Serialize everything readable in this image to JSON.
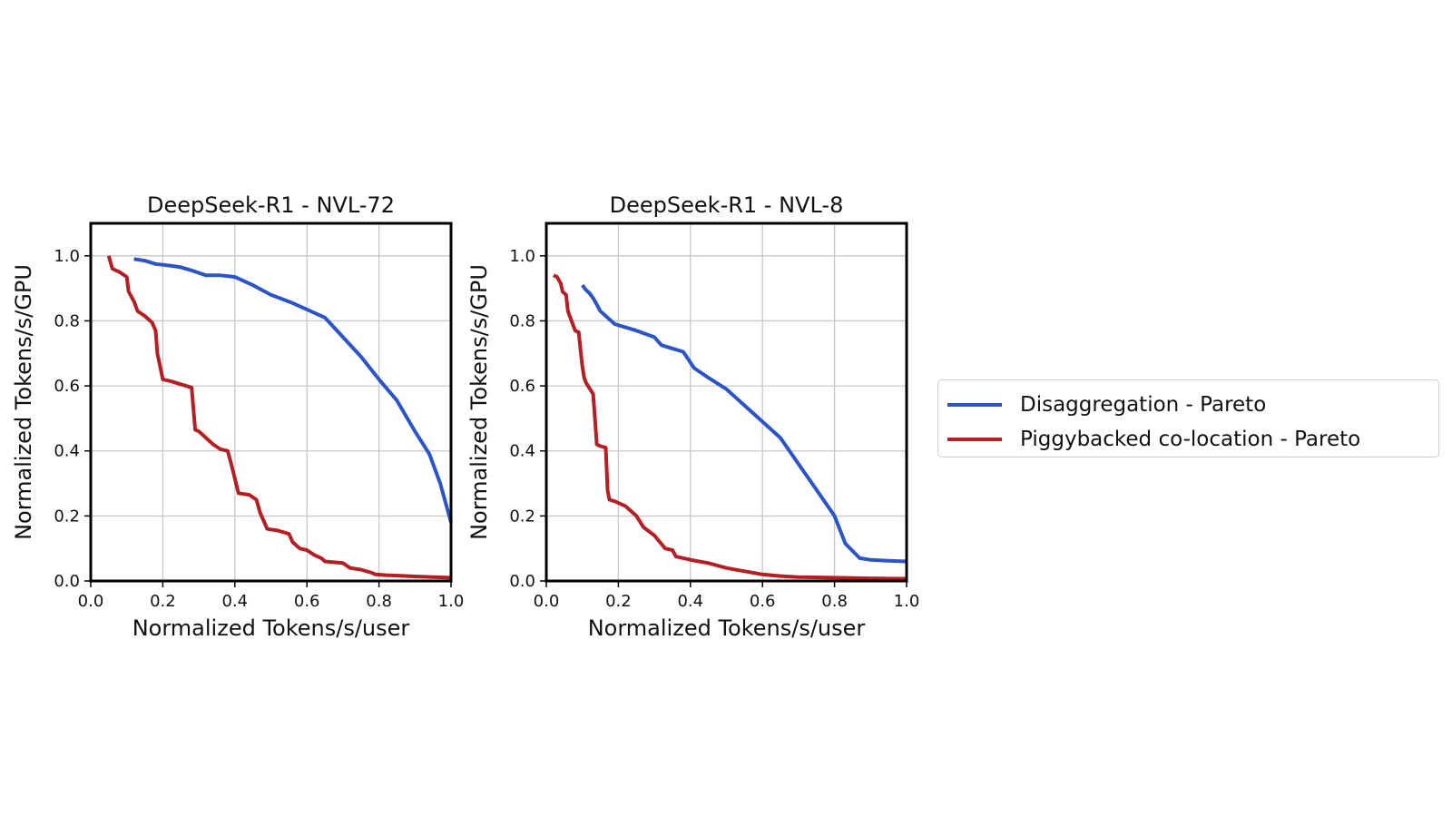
{
  "legend": {
    "items": [
      {
        "label": "Disaggregation - Pareto",
        "color": "#2b55c6"
      },
      {
        "label": "Piggybacked co-location - Pareto",
        "color": "#b51f24"
      }
    ]
  },
  "chart_data": [
    {
      "type": "line",
      "title": "DeepSeek-R1 - NVL-72",
      "xlabel": "Normalized Tokens/s/user",
      "ylabel": "Normalized Tokens/s/GPU",
      "xlim": [
        0.0,
        1.0
      ],
      "ylim": [
        0.0,
        1.1
      ],
      "xticks": [
        "0.0",
        "0.2",
        "0.4",
        "0.6",
        "0.8",
        "1.0"
      ],
      "yticks": [
        "0.0",
        "0.2",
        "0.4",
        "0.6",
        "0.8",
        "1.0"
      ],
      "grid": true,
      "series": [
        {
          "name": "Disaggregation - Pareto",
          "color": "#2b55c6",
          "x": [
            0.12,
            0.15,
            0.18,
            0.22,
            0.25,
            0.28,
            0.32,
            0.36,
            0.4,
            0.45,
            0.5,
            0.56,
            0.6,
            0.65,
            0.7,
            0.75,
            0.8,
            0.85,
            0.9,
            0.94,
            0.97,
            1.0
          ],
          "y": [
            0.99,
            0.985,
            0.975,
            0.97,
            0.965,
            0.955,
            0.94,
            0.94,
            0.935,
            0.91,
            0.88,
            0.855,
            0.835,
            0.81,
            0.75,
            0.69,
            0.62,
            0.555,
            0.46,
            0.39,
            0.3,
            0.18
          ]
        },
        {
          "name": "Piggybacked co-location - Pareto",
          "color": "#b51f24",
          "x": [
            0.05,
            0.06,
            0.08,
            0.1,
            0.105,
            0.12,
            0.13,
            0.15,
            0.17,
            0.18,
            0.185,
            0.2,
            0.22,
            0.28,
            0.285,
            0.29,
            0.3,
            0.32,
            0.34,
            0.36,
            0.38,
            0.39,
            0.41,
            0.44,
            0.46,
            0.47,
            0.49,
            0.52,
            0.55,
            0.56,
            0.58,
            0.6,
            0.62,
            0.64,
            0.65,
            0.7,
            0.72,
            0.75,
            0.78,
            0.79,
            0.82,
            0.86,
            0.9,
            0.95,
            1.0
          ],
          "y": [
            1.0,
            0.96,
            0.95,
            0.935,
            0.89,
            0.86,
            0.83,
            0.815,
            0.795,
            0.77,
            0.7,
            0.62,
            0.615,
            0.595,
            0.53,
            0.465,
            0.46,
            0.44,
            0.42,
            0.405,
            0.4,
            0.36,
            0.27,
            0.265,
            0.25,
            0.21,
            0.16,
            0.155,
            0.145,
            0.12,
            0.1,
            0.095,
            0.08,
            0.07,
            0.06,
            0.055,
            0.04,
            0.035,
            0.025,
            0.02,
            0.018,
            0.016,
            0.014,
            0.012,
            0.01
          ]
        }
      ]
    },
    {
      "type": "line",
      "title": "DeepSeek-R1 - NVL-8",
      "xlabel": "Normalized Tokens/s/user",
      "ylabel": "Normalized Tokens/s/GPU",
      "xlim": [
        0.0,
        1.0
      ],
      "ylim": [
        0.0,
        1.1
      ],
      "xticks": [
        "0.0",
        "0.2",
        "0.4",
        "0.6",
        "0.8",
        "1.0"
      ],
      "yticks": [
        "0.0",
        "0.2",
        "0.4",
        "0.6",
        "0.8",
        "1.0"
      ],
      "grid": true,
      "series": [
        {
          "name": "Disaggregation - Pareto",
          "color": "#2b55c6",
          "x": [
            0.1,
            0.11,
            0.12,
            0.13,
            0.14,
            0.15,
            0.17,
            0.19,
            0.22,
            0.25,
            0.3,
            0.32,
            0.35,
            0.38,
            0.41,
            0.45,
            0.5,
            0.55,
            0.6,
            0.65,
            0.7,
            0.75,
            0.8,
            0.83,
            0.87,
            0.9,
            0.95,
            1.0
          ],
          "y": [
            0.91,
            0.895,
            0.885,
            0.87,
            0.85,
            0.83,
            0.81,
            0.79,
            0.78,
            0.77,
            0.75,
            0.725,
            0.715,
            0.705,
            0.655,
            0.625,
            0.59,
            0.54,
            0.49,
            0.44,
            0.36,
            0.28,
            0.2,
            0.115,
            0.07,
            0.065,
            0.062,
            0.06
          ]
        },
        {
          "name": "Piggybacked co-location - Pareto",
          "color": "#b51f24",
          "x": [
            0.02,
            0.03,
            0.04,
            0.045,
            0.055,
            0.06,
            0.07,
            0.08,
            0.09,
            0.095,
            0.1,
            0.105,
            0.11,
            0.13,
            0.135,
            0.14,
            0.15,
            0.165,
            0.17,
            0.175,
            0.19,
            0.22,
            0.25,
            0.27,
            0.3,
            0.33,
            0.35,
            0.36,
            0.4,
            0.45,
            0.5,
            0.55,
            0.6,
            0.65,
            0.7,
            0.8,
            0.9,
            1.0
          ],
          "y": [
            0.94,
            0.935,
            0.915,
            0.89,
            0.88,
            0.83,
            0.8,
            0.77,
            0.765,
            0.71,
            0.66,
            0.625,
            0.61,
            0.575,
            0.5,
            0.42,
            0.415,
            0.41,
            0.28,
            0.25,
            0.245,
            0.23,
            0.2,
            0.165,
            0.14,
            0.1,
            0.095,
            0.075,
            0.065,
            0.055,
            0.04,
            0.03,
            0.02,
            0.015,
            0.012,
            0.01,
            0.008,
            0.007
          ]
        }
      ]
    }
  ]
}
